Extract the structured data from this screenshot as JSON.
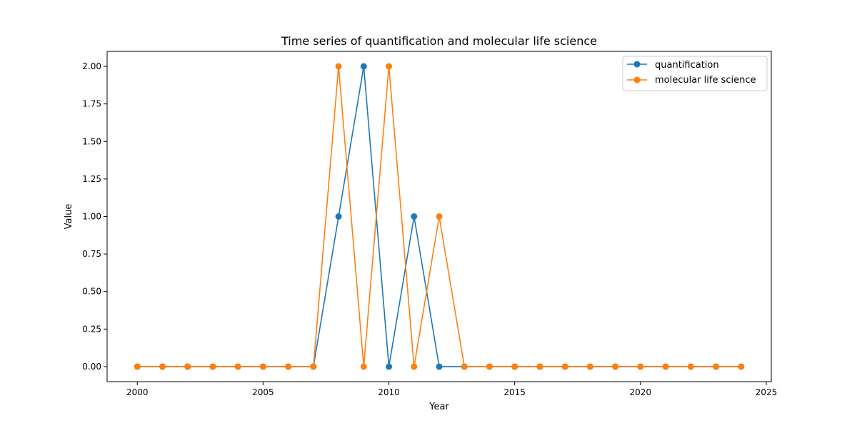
{
  "chart_data": {
    "type": "line",
    "title": "Time series of quantification and molecular life science",
    "xlabel": "Year",
    "ylabel": "Value",
    "xlim": [
      1998.8,
      2025.2
    ],
    "ylim": [
      -0.1,
      2.1
    ],
    "xticks": [
      2000,
      2005,
      2010,
      2015,
      2020,
      2025
    ],
    "xtick_labels": [
      "2000",
      "2005",
      "2010",
      "2015",
      "2020",
      "2025"
    ],
    "yticks": [
      0.0,
      0.25,
      0.5,
      0.75,
      1.0,
      1.25,
      1.5,
      1.75,
      2.0
    ],
    "ytick_labels": [
      "0.00",
      "0.25",
      "0.50",
      "0.75",
      "1.00",
      "1.25",
      "1.50",
      "1.75",
      "2.00"
    ],
    "grid": false,
    "legend_position": "top-right",
    "x": [
      2000,
      2001,
      2002,
      2003,
      2004,
      2005,
      2006,
      2007,
      2008,
      2009,
      2010,
      2011,
      2012,
      2013,
      2014,
      2015,
      2016,
      2017,
      2018,
      2019,
      2020,
      2021,
      2022,
      2023,
      2024
    ],
    "series": [
      {
        "name": "quantification",
        "color": "#1f77b4",
        "values": [
          0,
          0,
          0,
          0,
          0,
          0,
          0,
          0,
          1,
          2,
          0,
          1,
          0,
          0,
          0,
          0,
          0,
          0,
          0,
          0,
          0,
          0,
          0,
          0,
          0
        ]
      },
      {
        "name": "molecular life science",
        "color": "#ff7f0e",
        "values": [
          0,
          0,
          0,
          0,
          0,
          0,
          0,
          0,
          2,
          0,
          2,
          0,
          1,
          0,
          0,
          0,
          0,
          0,
          0,
          0,
          0,
          0,
          0,
          0,
          0
        ]
      }
    ]
  }
}
